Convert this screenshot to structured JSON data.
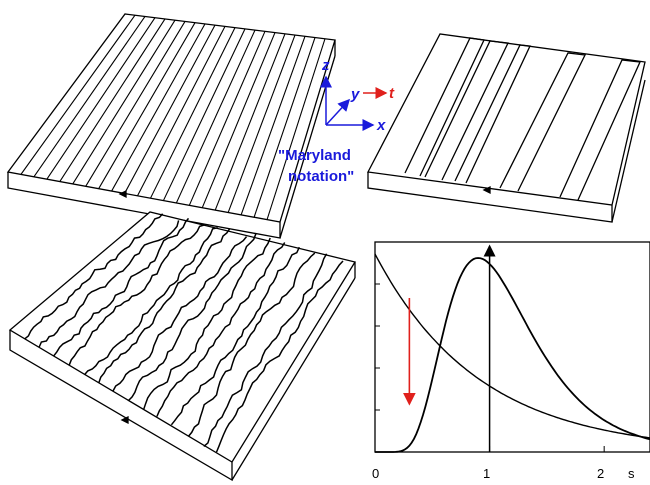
{
  "axes_legend": {
    "z": "z",
    "y": "y",
    "t": "t",
    "x": "x",
    "colors": {
      "axis": "#1a1adb",
      "time": "#e0201c"
    }
  },
  "note": {
    "line1": "\"Maryland",
    "line2": "notation\""
  },
  "chart_data": {
    "type": "line",
    "x_ticks": [
      "0",
      "1",
      "2",
      "s"
    ],
    "series": [
      {
        "values": [
          [
            0,
            1.0
          ],
          [
            0.5,
            0.55
          ],
          [
            1,
            0.33
          ],
          [
            1.5,
            0.2
          ],
          [
            2,
            0.12
          ],
          [
            2.5,
            0.07
          ]
        ]
      },
      {
        "values": [
          [
            0,
            0.0
          ],
          [
            0.3,
            0.1
          ],
          [
            0.6,
            0.7
          ],
          [
            0.9,
            0.98
          ],
          [
            1.2,
            0.7
          ],
          [
            1.6,
            0.3
          ],
          [
            2,
            0.12
          ],
          [
            2.5,
            0.07
          ]
        ]
      }
    ],
    "markers": {
      "vertical_line_x": 1,
      "red_arrow_x": 0.3
    },
    "colors": {
      "curve": "#000000",
      "arrow": "#e0201c"
    }
  }
}
